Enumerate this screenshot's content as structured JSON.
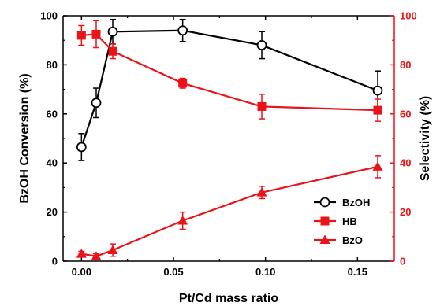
{
  "chart_data": {
    "type": "line",
    "xlabel": "Pt/Cd mass ratio",
    "ylabel_left": "BzOH Conversion (%)",
    "ylabel_right": "Selectivity (%)",
    "xlim": [
      -0.01,
      0.17
    ],
    "ylim_left": [
      0,
      100
    ],
    "ylim_right": [
      0,
      100
    ],
    "x_ticks": [
      "0.00",
      "0.05",
      "0.10",
      "0.15"
    ],
    "x_tick_values": [
      0.0,
      0.05,
      0.1,
      0.15
    ],
    "y_ticks_left": [
      "0",
      "20",
      "40",
      "60",
      "80",
      "100"
    ],
    "y_ticks_right": [
      "0",
      "20",
      "40",
      "60",
      "80",
      "100"
    ],
    "y_tick_values": [
      0,
      20,
      40,
      60,
      80,
      100
    ],
    "grid": false,
    "legend_position": "bottom-right",
    "left_axis_color": "#000000",
    "right_axis_color": "#e8141a",
    "series": [
      {
        "name": "BzOH",
        "axis": "left",
        "color": "#000000",
        "marker": "open-circle",
        "x": [
          0.0,
          0.008,
          0.017,
          0.055,
          0.098,
          0.161
        ],
        "y": [
          46.5,
          64.5,
          93.5,
          94.0,
          88.0,
          69.5
        ],
        "err": [
          5.5,
          6.0,
          5.0,
          4.5,
          5.5,
          8.0
        ]
      },
      {
        "name": "HB",
        "axis": "right",
        "color": "#e8141a",
        "marker": "square",
        "x": [
          0.0,
          0.008,
          0.017,
          0.055,
          0.098,
          0.161
        ],
        "y": [
          92.0,
          92.5,
          85.5,
          72.5,
          63.0,
          61.5
        ],
        "err": [
          4.0,
          5.5,
          3.0,
          2.0,
          5.0,
          4.5
        ]
      },
      {
        "name": "BzO",
        "axis": "right",
        "color": "#e8141a",
        "marker": "triangle",
        "x": [
          0.0,
          0.008,
          0.017,
          0.055,
          0.098,
          0.161
        ],
        "y": [
          3.0,
          2.0,
          4.5,
          16.5,
          28.0,
          38.5
        ],
        "err": [
          1.0,
          1.0,
          2.5,
          3.5,
          2.5,
          4.5
        ]
      }
    ]
  }
}
